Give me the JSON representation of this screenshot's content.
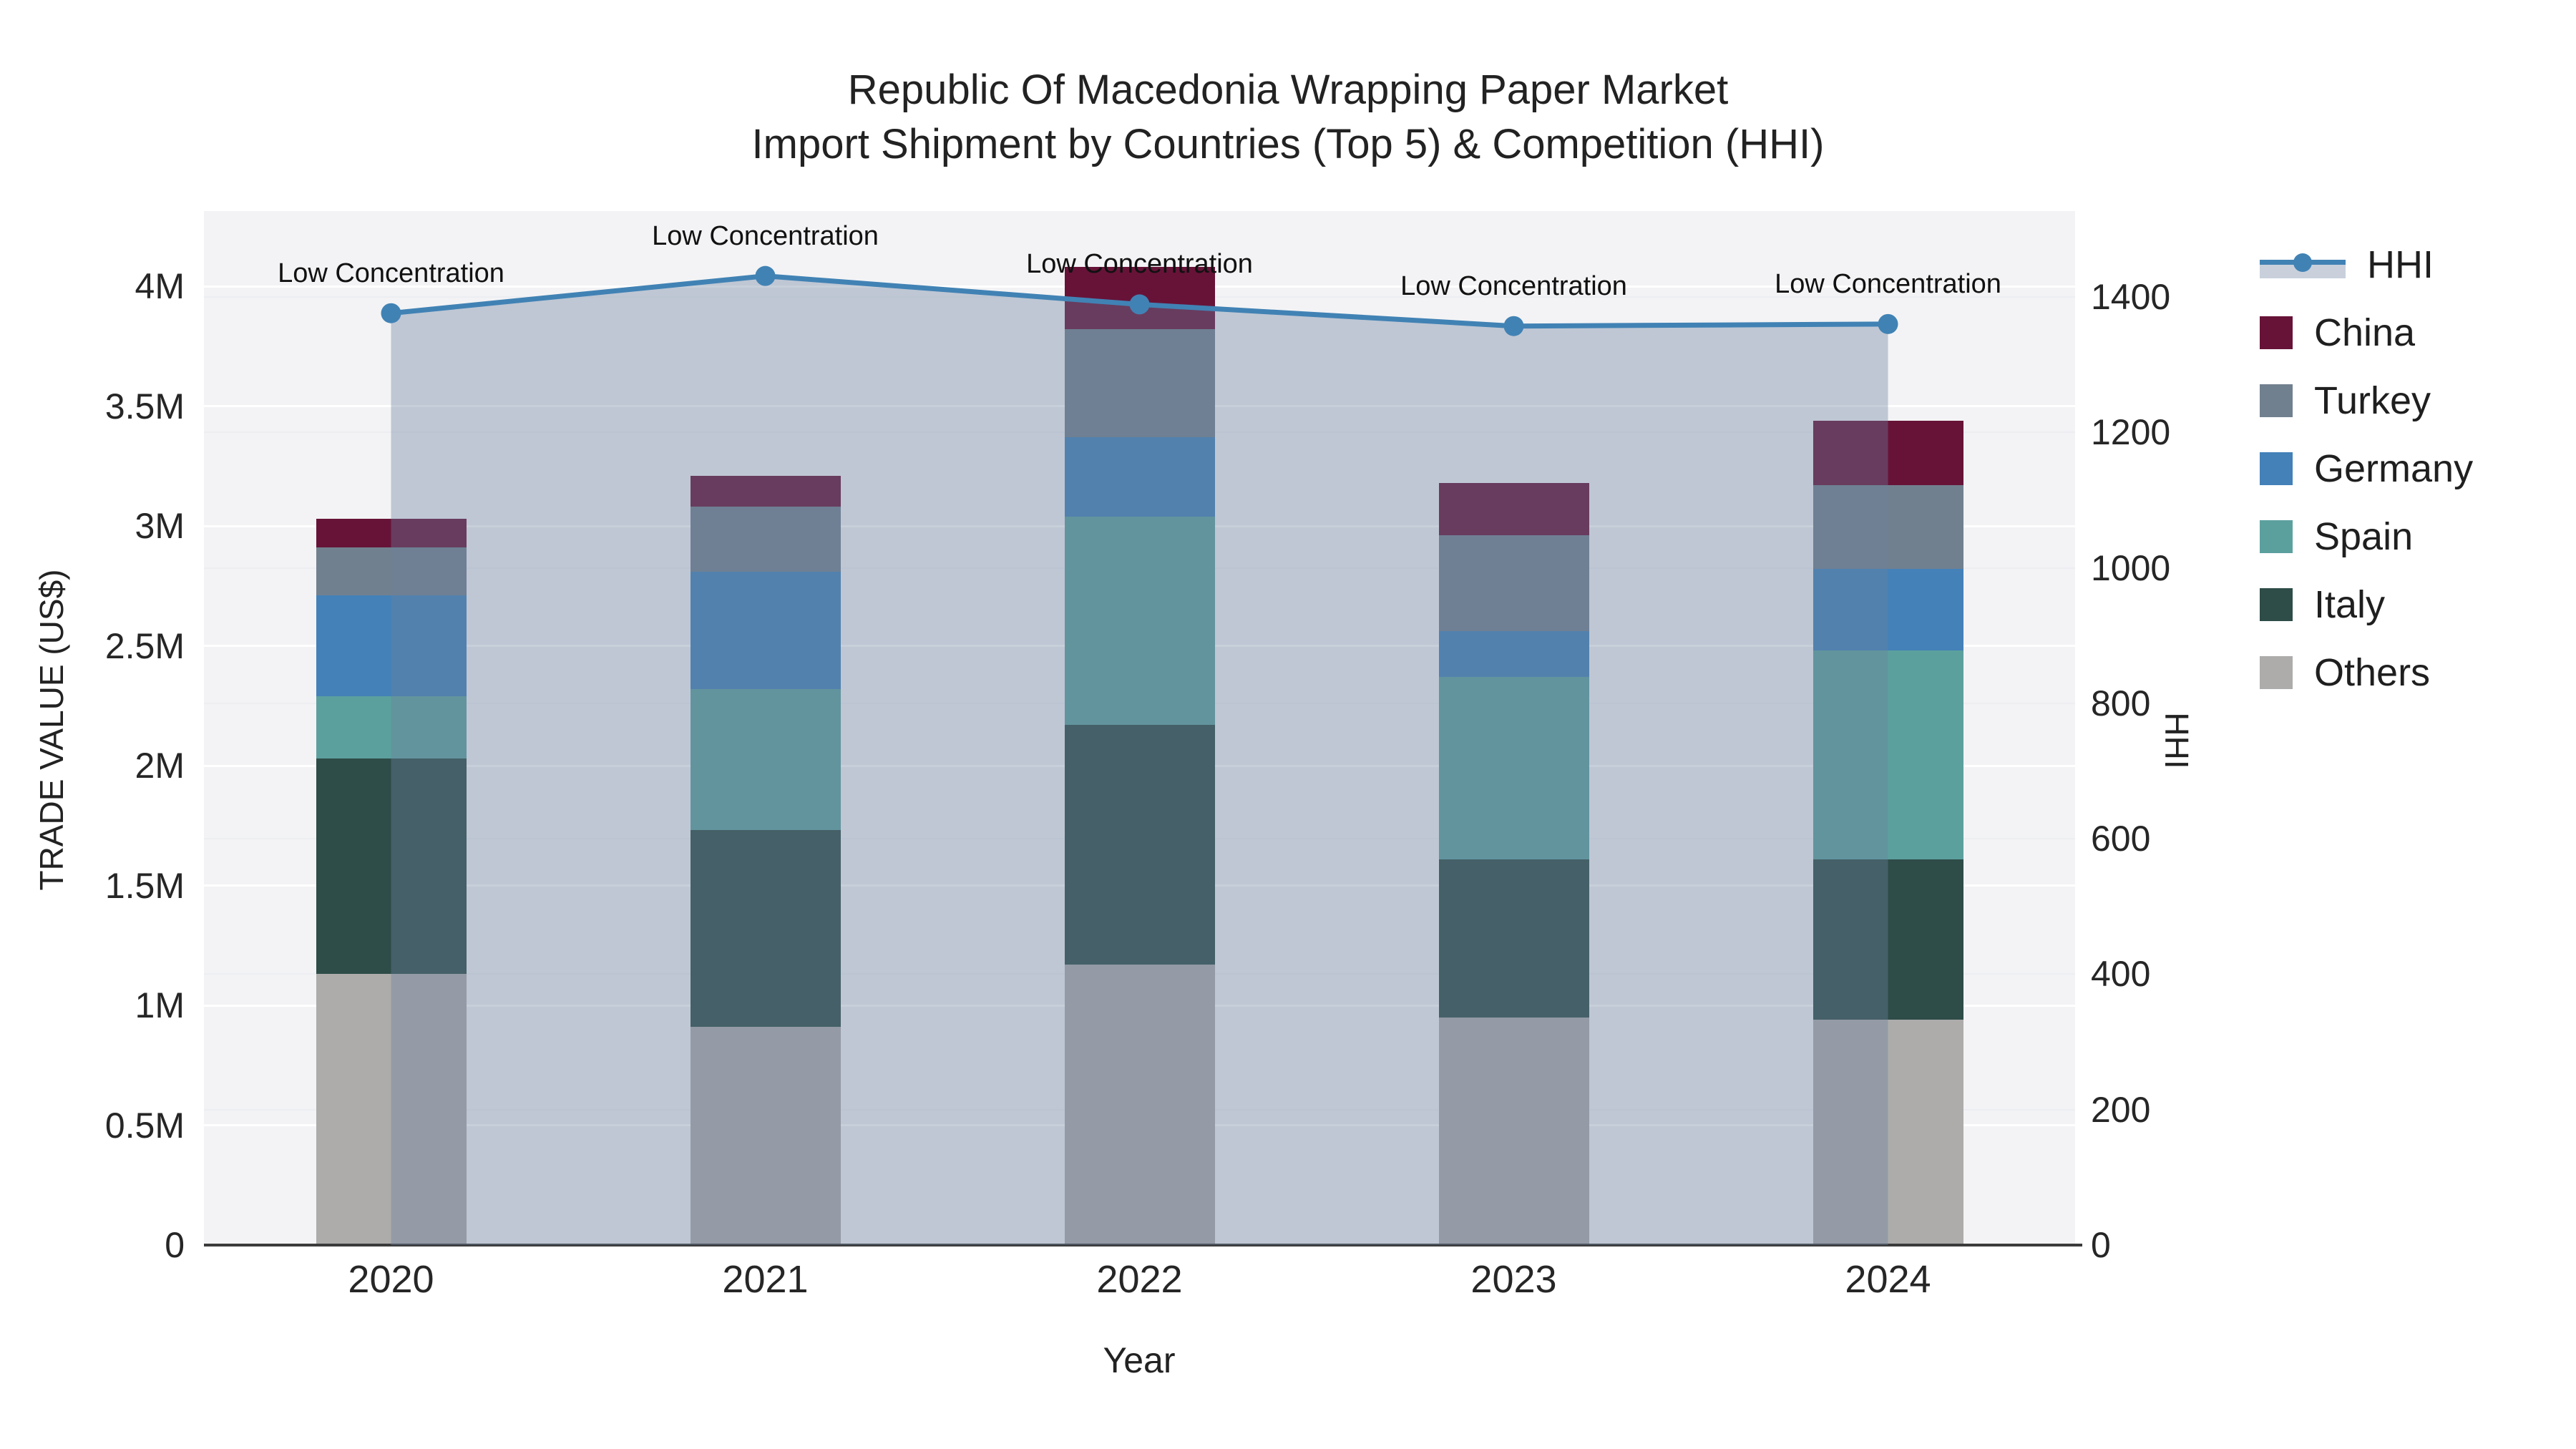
{
  "title": {
    "line1": "Republic Of Macedonia Wrapping Paper Market",
    "line2": "Import Shipment by Countries (Top 5) & Competition (HHI)"
  },
  "axes": {
    "left": {
      "title": "TRADE VALUE (US$)",
      "ticks": [
        {
          "label": "0",
          "value": 0
        },
        {
          "label": "0.5M",
          "value": 0.5
        },
        {
          "label": "1M",
          "value": 1
        },
        {
          "label": "1.5M",
          "value": 1.5
        },
        {
          "label": "2M",
          "value": 2
        },
        {
          "label": "2.5M",
          "value": 2.5
        },
        {
          "label": "3M",
          "value": 3
        },
        {
          "label": "3.5M",
          "value": 3.5
        },
        {
          "label": "4M",
          "value": 4
        }
      ]
    },
    "right": {
      "title": "HHI",
      "ticks": [
        0,
        200,
        400,
        600,
        800,
        1000,
        1200,
        1400
      ]
    },
    "x": {
      "title": "Year",
      "categories": [
        "2020",
        "2021",
        "2022",
        "2023",
        "2024"
      ]
    }
  },
  "legend": {
    "items": [
      {
        "label": "HHI",
        "type": "line",
        "color": "#4182b4",
        "band_color": "#c9d0dc"
      },
      {
        "label": "China",
        "type": "box",
        "color": "#671338"
      },
      {
        "label": "Turkey",
        "type": "box",
        "color": "#71808f"
      },
      {
        "label": "Germany",
        "type": "box",
        "color": "#4381b8"
      },
      {
        "label": "Spain",
        "type": "box",
        "color": "#5ca09e"
      },
      {
        "label": "Italy",
        "type": "box",
        "color": "#2e4c48"
      },
      {
        "label": "Others",
        "type": "box",
        "color": "#adacab"
      }
    ]
  },
  "annotations": {
    "text": "Low Concentration",
    "per_year": [
      "Low Concentration",
      "Low Concentration",
      "Low Concentration",
      "Low Concentration",
      "Low Concentration"
    ]
  },
  "chart_data": {
    "type": "bar",
    "subtype": "stacked bars with secondary-axis line (HHI)",
    "categories": [
      "2020",
      "2021",
      "2022",
      "2023",
      "2024"
    ],
    "values_unit": "million US$",
    "series": [
      {
        "name": "Others",
        "color": "#adacab",
        "values": [
          1.13,
          0.91,
          1.17,
          0.95,
          0.94
        ]
      },
      {
        "name": "Italy",
        "color": "#2e4c48",
        "values": [
          0.9,
          0.82,
          1.0,
          0.66,
          0.67
        ]
      },
      {
        "name": "Spain",
        "color": "#5ca09e",
        "values": [
          0.26,
          0.59,
          0.87,
          0.76,
          0.87
        ]
      },
      {
        "name": "Germany",
        "color": "#4381b8",
        "values": [
          0.42,
          0.49,
          0.33,
          0.19,
          0.34
        ]
      },
      {
        "name": "Turkey",
        "color": "#71808f",
        "values": [
          0.2,
          0.27,
          0.45,
          0.4,
          0.35
        ]
      },
      {
        "name": "China",
        "color": "#671338",
        "values": [
          0.12,
          0.13,
          0.26,
          0.22,
          0.27
        ]
      }
    ],
    "bar_totals": [
      3.03,
      3.21,
      4.08,
      3.18,
      3.44
    ],
    "line_series": {
      "name": "HHI",
      "color": "#4182b4",
      "fill_color": "#6c809e",
      "fill_opacity": 0.38,
      "values": [
        1376,
        1431,
        1389,
        1357,
        1360
      ]
    },
    "xlabel": "Year",
    "ylabel_left": "TRADE VALUE (US$)",
    "ylabel_right": "HHI",
    "ylim_left": [
      0,
      4.32
    ],
    "ylim_right": [
      0,
      1400
    ],
    "grid": true,
    "legend_position": "right",
    "plot_bg": "#f3f3f5",
    "grid_color": "#ffffff"
  }
}
